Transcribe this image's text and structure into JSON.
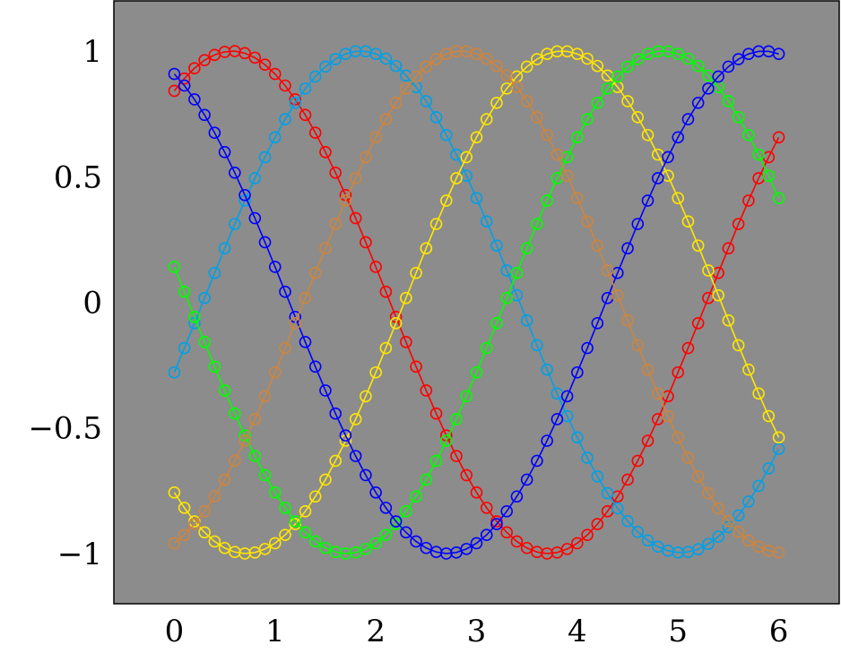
{
  "chart_data": {
    "type": "line",
    "title": "",
    "xlabel": "",
    "ylabel": "",
    "xlim": [
      -0.6,
      6.6
    ],
    "ylim": [
      -1.2,
      1.2
    ],
    "grid": false,
    "legend": "none",
    "background": "#8c8c8c",
    "marker": "open-circle",
    "x_ticks": [
      0,
      1,
      2,
      3,
      4,
      5,
      6
    ],
    "x_tick_labels": [
      "0",
      "1",
      "2",
      "3",
      "4",
      "5",
      "6"
    ],
    "y_ticks": [
      1,
      0.5,
      0,
      -0.5,
      -1
    ],
    "y_tick_labels": [
      "1",
      "0.5",
      "0",
      "−0.5",
      "−1"
    ],
    "x": [
      0.0,
      0.1,
      0.2,
      0.3,
      0.4,
      0.5,
      0.6,
      0.7,
      0.8,
      0.9,
      1.0,
      1.1,
      1.2,
      1.3,
      1.4,
      1.5,
      1.6,
      1.7,
      1.8,
      1.9,
      2.0,
      2.1,
      2.2,
      2.3,
      2.4,
      2.5,
      2.6,
      2.7,
      2.8,
      2.9,
      3.0,
      3.1,
      3.2,
      3.3,
      3.4,
      3.5,
      3.6,
      3.7,
      3.8,
      3.9,
      4.0,
      4.1,
      4.2,
      4.3,
      4.4,
      4.5,
      4.6,
      4.7,
      4.8,
      4.9,
      5.0,
      5.1,
      5.2,
      5.3,
      5.4,
      5.5,
      5.6,
      5.7,
      5.8,
      5.9,
      6.0
    ],
    "series": [
      {
        "color": "#ff0000",
        "values": [
          0.842,
          0.891,
          0.932,
          0.964,
          0.985,
          0.997,
          1.0,
          0.992,
          0.974,
          0.946,
          0.909,
          0.863,
          0.808,
          0.746,
          0.675,
          0.598,
          0.516,
          0.427,
          0.335,
          0.239,
          0.141,
          0.042,
          -0.058,
          -0.158,
          -0.256,
          -0.351,
          -0.443,
          -0.53,
          -0.612,
          -0.688,
          -0.757,
          -0.818,
          -0.872,
          -0.916,
          -0.952,
          -0.978,
          -0.994,
          -1.0,
          -0.996,
          -0.982,
          -0.959,
          -0.926,
          -0.883,
          -0.832,
          -0.773,
          -0.706,
          -0.631,
          -0.551,
          -0.465,
          -0.374,
          -0.279,
          -0.182,
          -0.083,
          0.017,
          0.117,
          0.215,
          0.312,
          0.405,
          0.494,
          0.578,
          0.657
        ]
      },
      {
        "color": "#00a0e6",
        "values": [
          -0.279,
          -0.182,
          -0.083,
          0.017,
          0.117,
          0.215,
          0.312,
          0.405,
          0.494,
          0.578,
          0.657,
          0.729,
          0.794,
          0.851,
          0.899,
          0.938,
          0.968,
          0.989,
          0.999,
          0.999,
          0.989,
          0.97,
          0.941,
          0.903,
          0.857,
          0.801,
          0.737,
          0.666,
          0.588,
          0.504,
          0.415,
          0.322,
          0.226,
          0.127,
          0.028,
          -0.072,
          -0.171,
          -0.268,
          -0.363,
          -0.453,
          -0.538,
          -0.619,
          -0.693,
          -0.76,
          -0.82,
          -0.871,
          -0.914,
          -0.948,
          -0.973,
          -0.989,
          -0.996,
          -0.994,
          -0.983,
          -0.962,
          -0.933,
          -0.895,
          -0.848,
          -0.793,
          -0.731,
          -0.661,
          -0.584
        ]
      },
      {
        "color": "#ffe600",
        "values": [
          -0.757,
          -0.818,
          -0.872,
          -0.916,
          -0.952,
          -0.978,
          -0.994,
          -1.0,
          -0.996,
          -0.982,
          -0.959,
          -0.926,
          -0.883,
          -0.832,
          -0.773,
          -0.706,
          -0.631,
          -0.551,
          -0.465,
          -0.374,
          -0.279,
          -0.182,
          -0.083,
          0.017,
          0.117,
          0.215,
          0.312,
          0.405,
          0.494,
          0.578,
          0.657,
          0.729,
          0.794,
          0.851,
          0.899,
          0.938,
          0.968,
          0.989,
          0.999,
          0.999,
          0.989,
          0.97,
          0.941,
          0.903,
          0.857,
          0.801,
          0.737,
          0.666,
          0.588,
          0.504,
          0.415,
          0.322,
          0.226,
          0.127,
          0.028,
          -0.072,
          -0.171,
          -0.268,
          -0.363,
          -0.453,
          -0.538
        ]
      },
      {
        "color": "#00ff00",
        "values": [
          0.141,
          0.042,
          -0.058,
          -0.158,
          -0.256,
          -0.351,
          -0.443,
          -0.53,
          -0.612,
          -0.688,
          -0.757,
          -0.818,
          -0.872,
          -0.916,
          -0.952,
          -0.978,
          -0.994,
          -1.0,
          -0.996,
          -0.982,
          -0.959,
          -0.926,
          -0.883,
          -0.832,
          -0.773,
          -0.706,
          -0.631,
          -0.551,
          -0.465,
          -0.374,
          -0.279,
          -0.182,
          -0.083,
          0.017,
          0.117,
          0.215,
          0.312,
          0.405,
          0.494,
          0.578,
          0.657,
          0.729,
          0.794,
          0.851,
          0.899,
          0.938,
          0.968,
          0.989,
          0.999,
          0.999,
          0.989,
          0.97,
          0.941,
          0.903,
          0.857,
          0.801,
          0.737,
          0.666,
          0.588,
          0.504,
          0.415
        ]
      },
      {
        "color": "#0000ff",
        "values": [
          0.909,
          0.863,
          0.808,
          0.746,
          0.675,
          0.598,
          0.516,
          0.427,
          0.335,
          0.239,
          0.141,
          0.042,
          -0.058,
          -0.158,
          -0.256,
          -0.351,
          -0.443,
          -0.53,
          -0.612,
          -0.688,
          -0.757,
          -0.818,
          -0.872,
          -0.916,
          -0.952,
          -0.978,
          -0.994,
          -1.0,
          -0.996,
          -0.982,
          -0.959,
          -0.926,
          -0.883,
          -0.832,
          -0.773,
          -0.706,
          -0.631,
          -0.551,
          -0.465,
          -0.374,
          -0.279,
          -0.182,
          -0.083,
          0.017,
          0.117,
          0.215,
          0.312,
          0.405,
          0.494,
          0.578,
          0.657,
          0.729,
          0.794,
          0.851,
          0.899,
          0.938,
          0.968,
          0.989,
          0.999,
          0.999,
          0.989
        ]
      },
      {
        "color": "#cd853f",
        "values": [
          -0.959,
          -0.926,
          -0.883,
          -0.832,
          -0.773,
          -0.706,
          -0.631,
          -0.551,
          -0.465,
          -0.374,
          -0.279,
          -0.182,
          -0.083,
          0.017,
          0.117,
          0.215,
          0.312,
          0.405,
          0.494,
          0.578,
          0.657,
          0.729,
          0.794,
          0.851,
          0.899,
          0.938,
          0.968,
          0.989,
          0.999,
          0.999,
          0.989,
          0.97,
          0.941,
          0.903,
          0.857,
          0.801,
          0.737,
          0.666,
          0.588,
          0.504,
          0.415,
          0.322,
          0.226,
          0.127,
          0.028,
          -0.072,
          -0.171,
          -0.268,
          -0.363,
          -0.453,
          -0.538,
          -0.619,
          -0.693,
          -0.76,
          -0.82,
          -0.871,
          -0.914,
          -0.948,
          -0.973,
          -0.989,
          -0.996
        ]
      }
    ]
  }
}
